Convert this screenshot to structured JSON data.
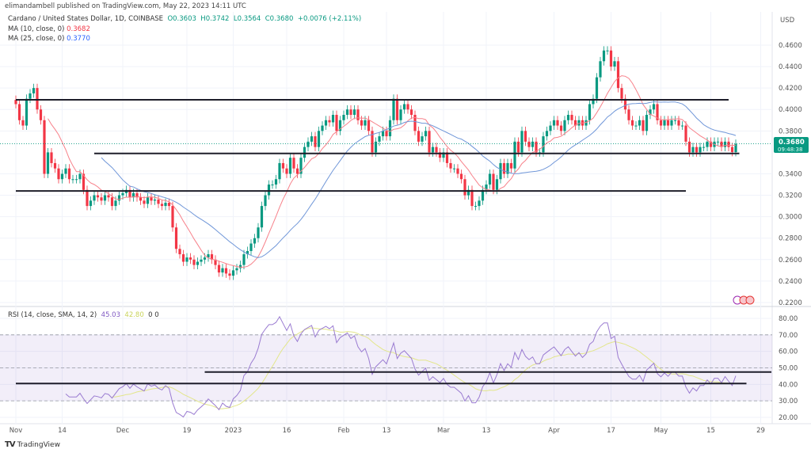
{
  "publisher": "elimandambell published on TradingView.com, May 22, 2023 14:11 UTC",
  "legend": {
    "symbol": "Cardano / United States Dollar, 1D, COINBASE",
    "open": "O0.3603",
    "high": "H0.3742",
    "low": "L0.3564",
    "close": "C0.3680",
    "change": "+0.0076 (+2.11%)",
    "ma10_label": "MA (10, close, 0)",
    "ma10_value": "0.3682",
    "ma25_label": "MA (25, close, 0)",
    "ma25_value": "0.3770"
  },
  "rsi_legend": {
    "label": "RSI (14, close, SMA, 14, 2)",
    "rsi_value": "45.03",
    "sma_value": "42.80",
    "extra": "0 0"
  },
  "price_axis": {
    "currency": "USD",
    "last_price": "0.3680",
    "countdown": "09:48:38"
  },
  "footer": {
    "logo": "TradingView"
  },
  "colors": {
    "up": "#089981",
    "down": "#f23645",
    "ma10": "#f7818a",
    "ma25": "#6f96d8",
    "rsi": "#9a7bd1",
    "rsi_sma": "#e3e68a",
    "trendline": "#1e1e2a"
  },
  "chart_data": [
    {
      "type": "candlestick",
      "title": "Cardano / United States Dollar, 1D, COINBASE",
      "ylabel": "USD",
      "ylim": [
        0.22,
        0.46
      ],
      "yticks": [
        "0.4600",
        "0.4400",
        "0.4200",
        "0.4000",
        "0.3800",
        "0.3400",
        "0.3200",
        "0.3000",
        "0.2800",
        "0.2600",
        "0.2400",
        "0.2200"
      ],
      "xticks": [
        {
          "date": "2022-11-01",
          "label": "Nov"
        },
        {
          "date": "2022-11-14",
          "label": "14"
        },
        {
          "date": "2022-12-01",
          "label": "Dec"
        },
        {
          "date": "2022-12-19",
          "label": "19"
        },
        {
          "date": "2023-01-01",
          "label": "2023"
        },
        {
          "date": "2023-01-16",
          "label": "16"
        },
        {
          "date": "2023-02-01",
          "label": "Feb"
        },
        {
          "date": "2023-02-13",
          "label": "13"
        },
        {
          "date": "2023-03-01",
          "label": "Mar"
        },
        {
          "date": "2023-03-13",
          "label": "13"
        },
        {
          "date": "2023-04-01",
          "label": "Apr"
        },
        {
          "date": "2023-04-17",
          "label": "17"
        },
        {
          "date": "2023-05-01",
          "label": "May"
        },
        {
          "date": "2023-05-15",
          "label": "15"
        },
        {
          "date": "2023-05-29",
          "label": "29"
        }
      ],
      "daily_closes": [
        {
          "month": "2022-11",
          "closes": [
            0.405,
            0.39,
            0.385,
            0.41,
            0.415,
            0.42,
            0.4,
            0.39,
            0.34,
            0.36,
            0.35,
            0.345,
            0.335,
            0.34,
            0.345,
            0.335,
            0.335,
            0.335,
            0.34,
            0.325,
            0.31,
            0.315,
            0.32,
            0.318,
            0.315,
            0.32,
            0.318,
            0.31,
            0.315,
            0.32
          ]
        },
        {
          "month": "2022-12",
          "closes": [
            0.322,
            0.325,
            0.318,
            0.322,
            0.318,
            0.315,
            0.312,
            0.318,
            0.315,
            0.316,
            0.312,
            0.31,
            0.313,
            0.31,
            0.29,
            0.27,
            0.265,
            0.258,
            0.262,
            0.26,
            0.255,
            0.258,
            0.26,
            0.262,
            0.265,
            0.26,
            0.255,
            0.248,
            0.252,
            0.247,
            0.245
          ]
        },
        {
          "month": "2023-01",
          "closes": [
            0.25,
            0.252,
            0.255,
            0.265,
            0.268,
            0.275,
            0.28,
            0.29,
            0.31,
            0.32,
            0.33,
            0.33,
            0.335,
            0.35,
            0.345,
            0.34,
            0.355,
            0.345,
            0.34,
            0.355,
            0.365,
            0.37,
            0.375,
            0.365,
            0.38,
            0.385,
            0.39,
            0.388,
            0.395,
            0.38,
            0.39
          ]
        },
        {
          "month": "2023-02",
          "closes": [
            0.395,
            0.4,
            0.395,
            0.4,
            0.39,
            0.385,
            0.39,
            0.38,
            0.36,
            0.37,
            0.375,
            0.38,
            0.375,
            0.39,
            0.41,
            0.39,
            0.4,
            0.405,
            0.4,
            0.395,
            0.38,
            0.37,
            0.375,
            0.38,
            0.36,
            0.365,
            0.36,
            0.355
          ]
        },
        {
          "month": "2023-03",
          "closes": [
            0.36,
            0.35,
            0.345,
            0.345,
            0.34,
            0.335,
            0.32,
            0.325,
            0.31,
            0.31,
            0.315,
            0.325,
            0.33,
            0.34,
            0.325,
            0.335,
            0.35,
            0.34,
            0.35,
            0.345,
            0.37,
            0.36,
            0.38,
            0.37,
            0.365,
            0.37,
            0.36,
            0.36,
            0.375,
            0.38,
            0.385
          ]
        },
        {
          "month": "2023-04",
          "closes": [
            0.39,
            0.385,
            0.38,
            0.39,
            0.395,
            0.39,
            0.385,
            0.39,
            0.385,
            0.39,
            0.405,
            0.41,
            0.43,
            0.445,
            0.455,
            0.455,
            0.44,
            0.445,
            0.42,
            0.41,
            0.4,
            0.39,
            0.385,
            0.385,
            0.39,
            0.38,
            0.395,
            0.4,
            0.405,
            0.39
          ]
        },
        {
          "month": "2023-05",
          "closes": [
            0.385,
            0.39,
            0.385,
            0.39,
            0.39,
            0.385,
            0.385,
            0.37,
            0.36,
            0.365,
            0.36,
            0.365,
            0.365,
            0.37,
            0.365,
            0.37,
            0.37,
            0.365,
            0.37,
            0.365,
            0.3603,
            0.368
          ]
        }
      ],
      "indicators": [
        {
          "name": "MA (10, close, 0)",
          "period": 10
        },
        {
          "name": "MA (25, close, 0)",
          "period": 25
        }
      ],
      "trendlines": [
        {
          "level": 0.409,
          "from": "2022-11-01",
          "to": "2023-05-20"
        },
        {
          "level": 0.359,
          "from": "2022-11-23",
          "to": "2023-05-23"
        },
        {
          "level": 0.324,
          "from": "2022-11-01",
          "to": "2023-05-08"
        }
      ]
    },
    {
      "type": "line",
      "title": "RSI (14, close, SMA, 14, 2)",
      "ylim": [
        20,
        80
      ],
      "yticks": [
        "80.00",
        "70.00",
        "60.00",
        "50.00",
        "40.00",
        "30.00",
        "20.00"
      ],
      "bands": {
        "upper": 70,
        "middle": 50,
        "lower": 30
      },
      "rsi_period": 14,
      "sma_period": 14,
      "trendlines": [
        {
          "level": 47.5,
          "from": "2022-12-24",
          "to": "2023-06-01"
        },
        {
          "level": 40.5,
          "from": "2022-11-01",
          "to": "2023-05-25"
        }
      ]
    }
  ]
}
